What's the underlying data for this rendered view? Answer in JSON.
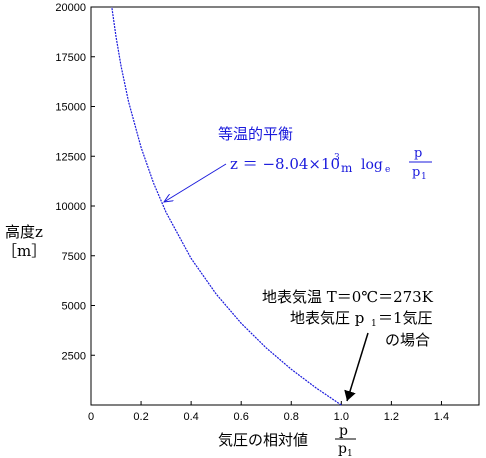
{
  "chart_data": {
    "type": "line",
    "title": "",
    "xlabel": {
      "text": "気圧の相対値",
      "frac_num": "p",
      "frac_den": "p",
      "frac_den_sub": "1"
    },
    "ylabel": {
      "line1": "高度z",
      "line2": "［m］"
    },
    "xlim": [
      0,
      1.55
    ],
    "ylim": [
      0,
      20000
    ],
    "xticks": [
      0,
      0.2,
      0.4,
      0.6,
      0.8,
      1.0,
      1.2,
      1.4
    ],
    "xtick_labels": [
      "0",
      "0.2",
      "0.4",
      "0.6",
      "0.8",
      "1.0",
      "1.2",
      "1.4"
    ],
    "yticks": [
      2500,
      5000,
      7500,
      10000,
      12500,
      15000,
      17500,
      20000
    ],
    "ytick_labels": [
      "2500",
      "5000",
      "7500",
      "10000",
      "12500",
      "15000",
      "17500",
      "20000"
    ],
    "grid": false,
    "series": [
      {
        "color": "#1a1adc",
        "x": [
          1.0,
          0.9,
          0.8,
          0.7,
          0.6,
          0.5,
          0.4,
          0.3,
          0.25,
          0.2,
          0.15,
          0.12,
          0.1,
          0.083
        ],
        "y": [
          0,
          847,
          1794,
          2868,
          4107,
          5573,
          7367,
          9680,
          11146,
          12940,
          15253,
          17047,
          18513,
          20000
        ]
      }
    ],
    "annotations": [
      {
        "title": "等温的平衡",
        "formula_lhs": "z ＝ −8.04×10",
        "formula_exp": "3",
        "formula_unit": "m",
        "formula_log": "log",
        "formula_log_sub": "e",
        "frac_num": "p",
        "frac_den": "p",
        "frac_den_sub": "1",
        "color": "#1a1adc",
        "arrow_target": [
          0.29,
          10000
        ]
      },
      {
        "line1": "地表気温 T＝0℃＝273K",
        "line2_prefix": "地表気圧 p",
        "line2_sub": "1",
        "line2_suffix": "＝1気圧",
        "line3": "の場合",
        "arrow_target": [
          1.0,
          0
        ]
      }
    ]
  }
}
